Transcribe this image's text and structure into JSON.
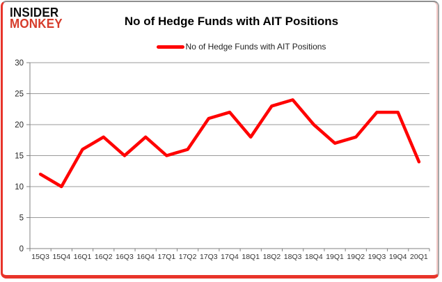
{
  "logo": {
    "line1": "INSIDER",
    "line2": "MONKEY"
  },
  "header": {
    "title": "No of Hedge Funds with AIT Positions"
  },
  "legend": {
    "label": "No of Hedge Funds with AIT Positions"
  },
  "chart_data": {
    "type": "line",
    "title": "No of Hedge Funds with AIT Positions",
    "categories": [
      "15Q3",
      "15Q4",
      "16Q1",
      "16Q2",
      "16Q3",
      "16Q4",
      "17Q1",
      "17Q2",
      "17Q3",
      "17Q4",
      "18Q1",
      "18Q2",
      "18Q3",
      "18Q4",
      "19Q1",
      "19Q2",
      "19Q3",
      "19Q4",
      "20Q1"
    ],
    "series": [
      {
        "name": "No of Hedge Funds with AIT Positions",
        "color": "#ff0000",
        "values": [
          12,
          10,
          16,
          18,
          15,
          18,
          15,
          16,
          21,
          22,
          18,
          23,
          24,
          20,
          17,
          18,
          22,
          22,
          14
        ]
      }
    ],
    "xlabel": "",
    "ylabel": "",
    "ylim": [
      0,
      30
    ],
    "yticks": [
      0,
      5,
      10,
      15,
      20,
      25,
      30
    ],
    "grid": true,
    "legend_position": "top-center"
  },
  "colors": {
    "line": "#ff0000",
    "grid": "#9a9a9a",
    "axis": "#808080",
    "y_tick_label": "#262626",
    "x_tick_label": "#333333",
    "border_red": "#e8342a",
    "border_gray": "#8f8f8f",
    "logo_black": "#0f0f0f",
    "logo_red": "#d63b2a"
  }
}
